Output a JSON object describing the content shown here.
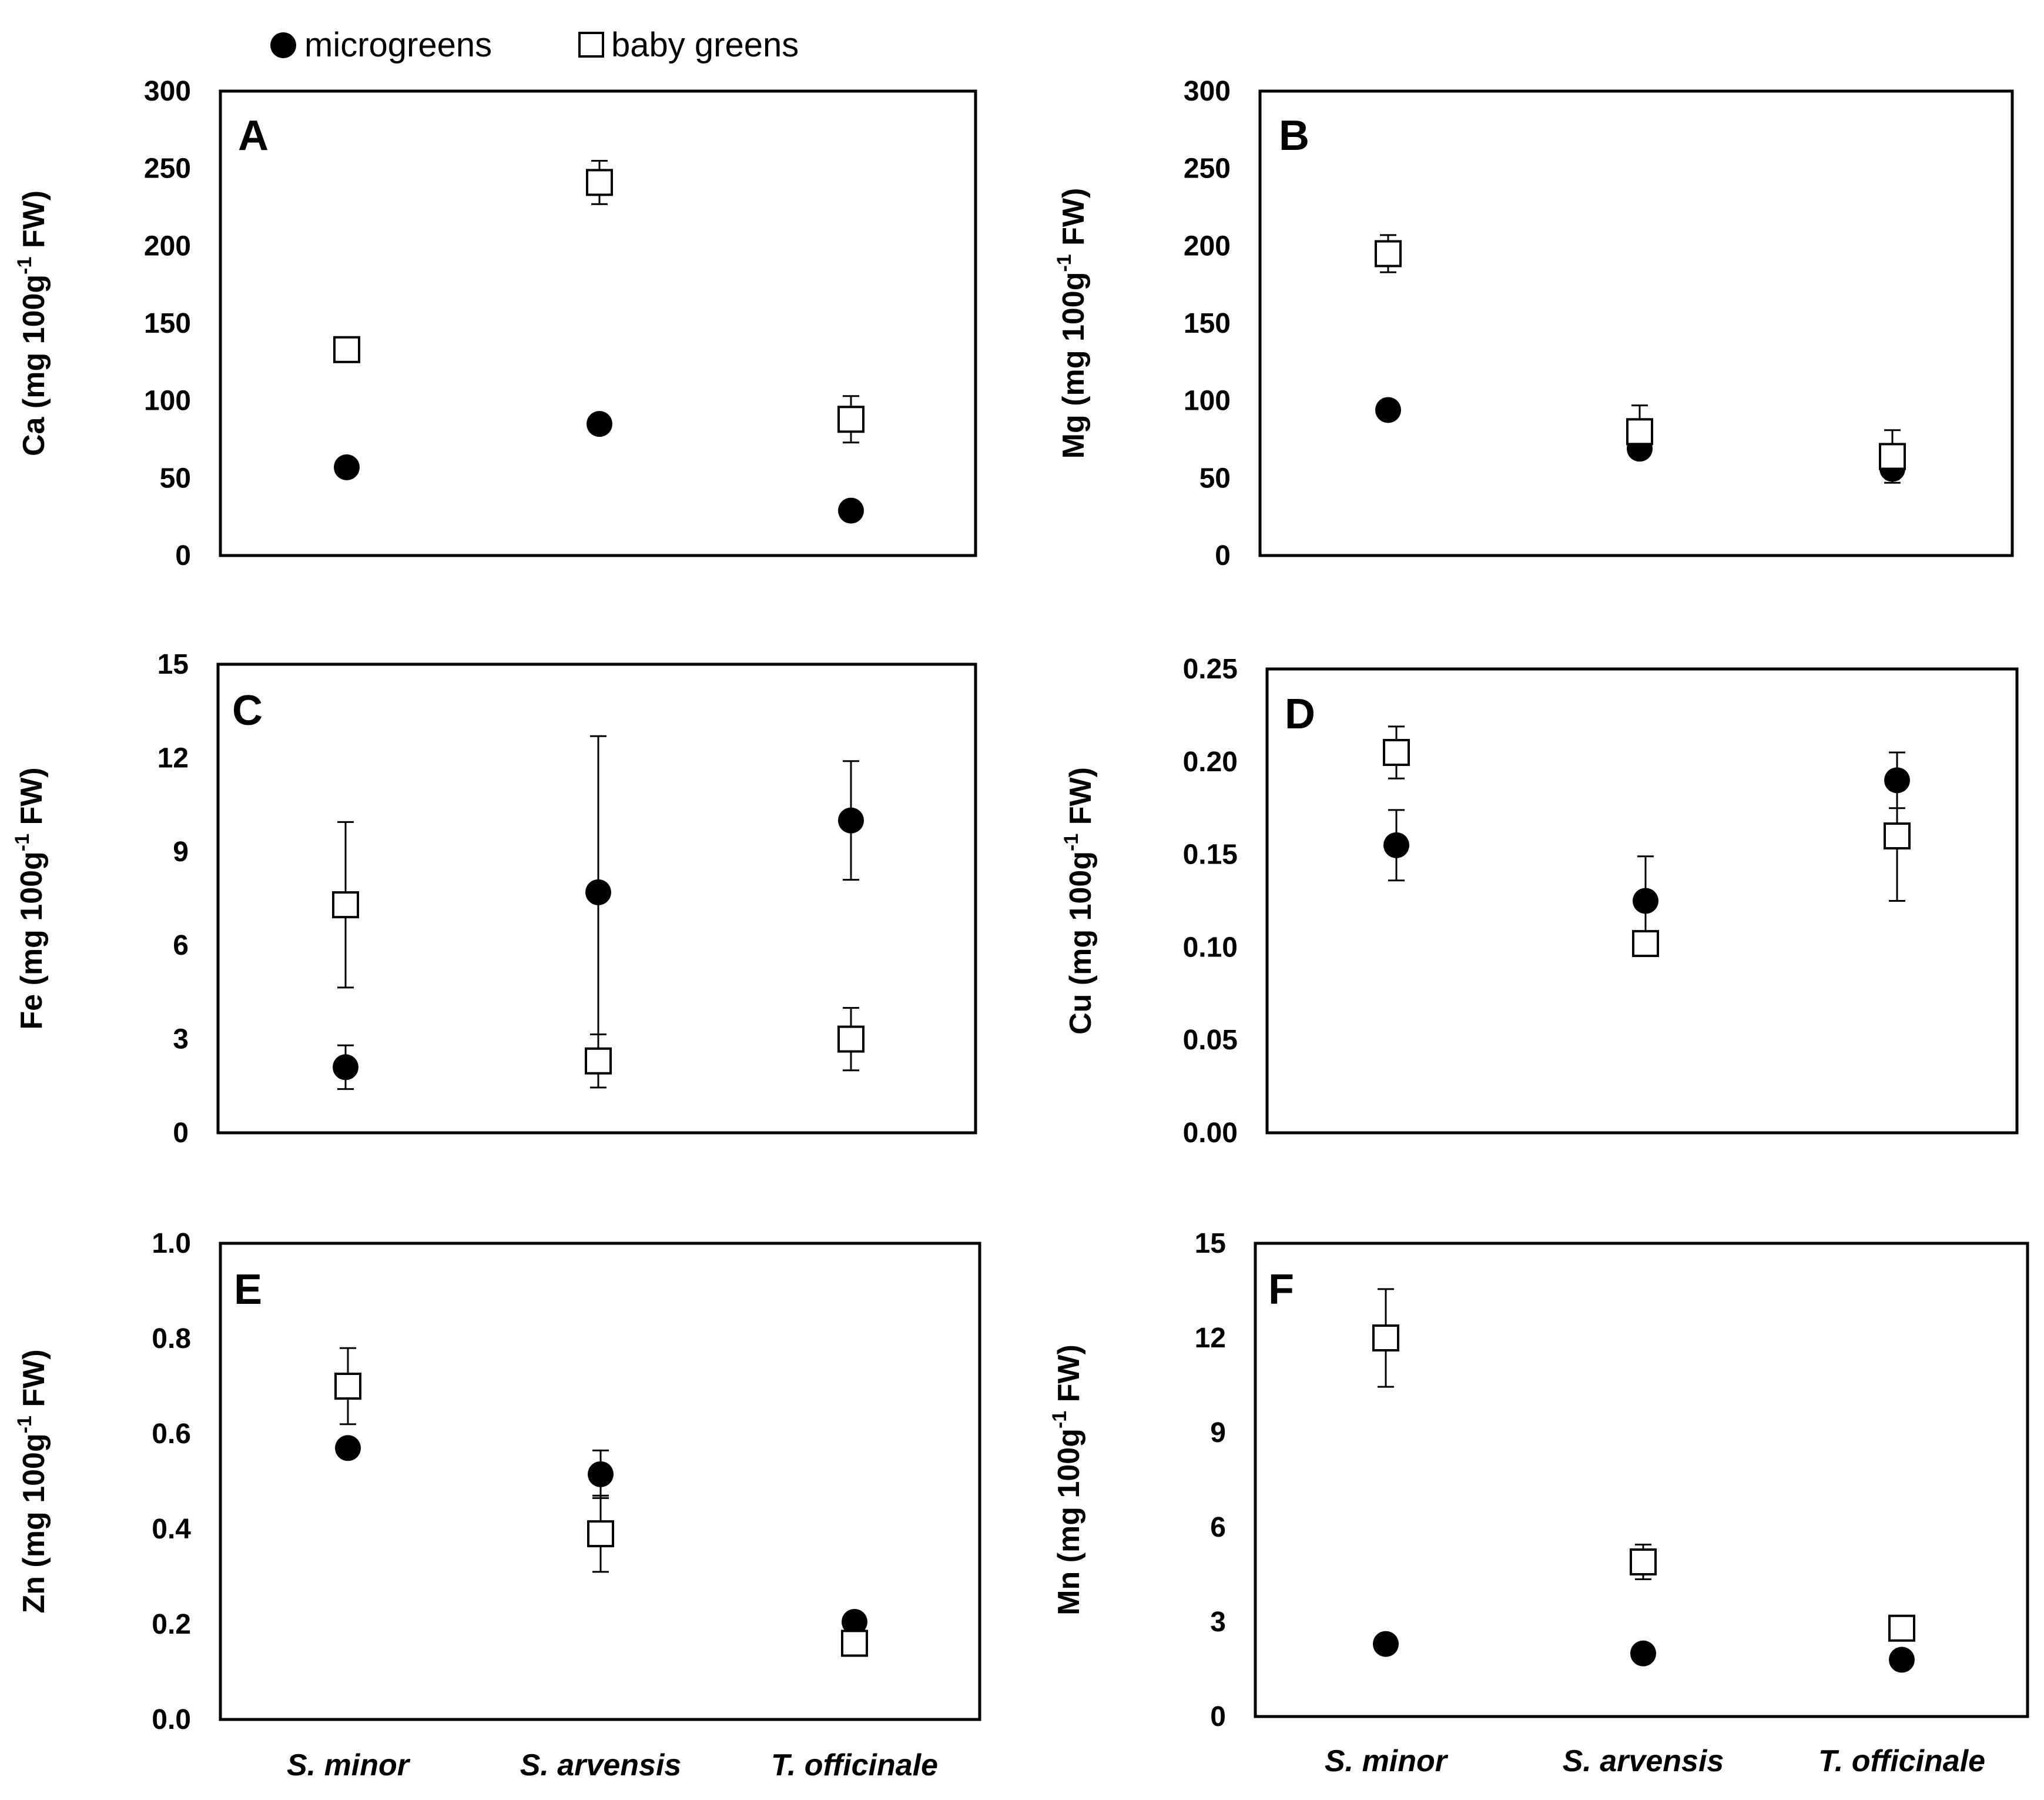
{
  "legend": {
    "microgreens": "microgreens",
    "baby_greens": "baby greens"
  },
  "colors": {
    "ink": "#000000",
    "background": "#ffffff"
  },
  "chart_data": [
    {
      "type": "scatter",
      "panel": "A",
      "ylabel": {
        "pre": "Ca (mg 100g",
        "sup": "-1",
        "post": " FW)"
      },
      "ylim": [
        0,
        300
      ],
      "yticks": [
        "0",
        "50",
        "100",
        "150",
        "200",
        "250",
        "300"
      ],
      "categories": [
        "S. minor",
        "S. arvensis",
        "T. officinale"
      ],
      "show_categories": false,
      "series": [
        {
          "name": "microgreens",
          "marker": "filled-circle",
          "values": [
            57,
            85,
            29
          ],
          "errors": [
            2,
            6,
            2
          ]
        },
        {
          "name": "baby greens",
          "marker": "open-square",
          "values": [
            133,
            241,
            88
          ],
          "errors": [
            6,
            14,
            15
          ]
        }
      ]
    },
    {
      "type": "scatter",
      "panel": "B",
      "ylabel": {
        "pre": "Mg (mg 100g",
        "sup": "-1",
        "post": " FW)"
      },
      "ylim": [
        0,
        300
      ],
      "yticks": [
        "0",
        "50",
        "100",
        "150",
        "200",
        "250",
        "300"
      ],
      "categories": [
        "S. minor",
        "S. arvensis",
        "T. officinale"
      ],
      "show_categories": false,
      "series": [
        {
          "name": "microgreens",
          "marker": "filled-circle",
          "values": [
            94,
            69,
            56
          ],
          "errors": [
            2,
            3,
            3
          ]
        },
        {
          "name": "baby greens",
          "marker": "open-square",
          "values": [
            195,
            80,
            64
          ],
          "errors": [
            12,
            17,
            17
          ]
        }
      ]
    },
    {
      "type": "scatter",
      "panel": "C",
      "ylabel": {
        "pre": "Fe (mg 100g",
        "sup": "-1",
        "post": " FW)"
      },
      "ylim": [
        0,
        15
      ],
      "yticks": [
        "0",
        "3",
        "6",
        "9",
        "12",
        "15"
      ],
      "categories": [
        "S. minor",
        "S. arvensis",
        "T. officinale"
      ],
      "show_categories": false,
      "series": [
        {
          "name": "microgreens",
          "marker": "filled-circle",
          "values": [
            2.1,
            7.7,
            10.0
          ],
          "errors": [
            0.7,
            5.0,
            1.9
          ]
        },
        {
          "name": "baby greens",
          "marker": "open-square",
          "values": [
            7.3,
            2.3,
            3.0
          ],
          "errors": [
            2.65,
            0.85,
            1.0
          ]
        }
      ]
    },
    {
      "type": "scatter",
      "panel": "D",
      "ylabel": {
        "pre": "Cu (mg 100g",
        "sup": "-1",
        "post": " FW)"
      },
      "ylim": [
        0,
        0.25
      ],
      "yticks": [
        "0.00",
        "0.05",
        "0.10",
        "0.15",
        "0.20",
        "0.25"
      ],
      "categories": [
        "S. minor",
        "S. arvensis",
        "T. officinale"
      ],
      "show_categories": false,
      "series": [
        {
          "name": "microgreens",
          "marker": "filled-circle",
          "values": [
            0.155,
            0.125,
            0.19
          ],
          "errors": [
            0.019,
            0.024,
            0.015
          ]
        },
        {
          "name": "baby greens",
          "marker": "open-square",
          "values": [
            0.205,
            0.102,
            0.16
          ],
          "errors": [
            0.014,
            0.003,
            0.035
          ]
        }
      ]
    },
    {
      "type": "scatter",
      "panel": "E",
      "ylabel": {
        "pre": "Zn (mg 100g",
        "sup": "-1",
        "post": " FW)"
      },
      "ylim": [
        0,
        1.0
      ],
      "yticks": [
        "0.0",
        "0.2",
        "0.4",
        "0.6",
        "0.8",
        "1.0"
      ],
      "categories": [
        "S. minor",
        "S. arvensis",
        "T. officinale"
      ],
      "show_categories": true,
      "series": [
        {
          "name": "microgreens",
          "marker": "filled-circle",
          "values": [
            0.57,
            0.515,
            0.205
          ],
          "errors": [
            0.01,
            0.05,
            0.01
          ]
        },
        {
          "name": "baby greens",
          "marker": "open-square",
          "values": [
            0.7,
            0.39,
            0.16
          ],
          "errors": [
            0.08,
            0.08,
            0.02
          ]
        }
      ]
    },
    {
      "type": "scatter",
      "panel": "F",
      "ylabel": {
        "pre": "Mn (mg 100g",
        "sup": "-1",
        "post": " FW)"
      },
      "ylim": [
        0,
        15
      ],
      "yticks": [
        "0",
        "3",
        "6",
        "9",
        "12",
        "15"
      ],
      "categories": [
        "S. minor",
        "S. arvensis",
        "T. officinale"
      ],
      "show_categories": true,
      "series": [
        {
          "name": "microgreens",
          "marker": "filled-circle",
          "values": [
            2.3,
            2.0,
            1.8
          ],
          "errors": [
            0.1,
            0.1,
            0.1
          ]
        },
        {
          "name": "baby greens",
          "marker": "open-square",
          "values": [
            12.0,
            4.9,
            2.8
          ],
          "errors": [
            1.55,
            0.55,
            0.2
          ]
        }
      ]
    }
  ]
}
